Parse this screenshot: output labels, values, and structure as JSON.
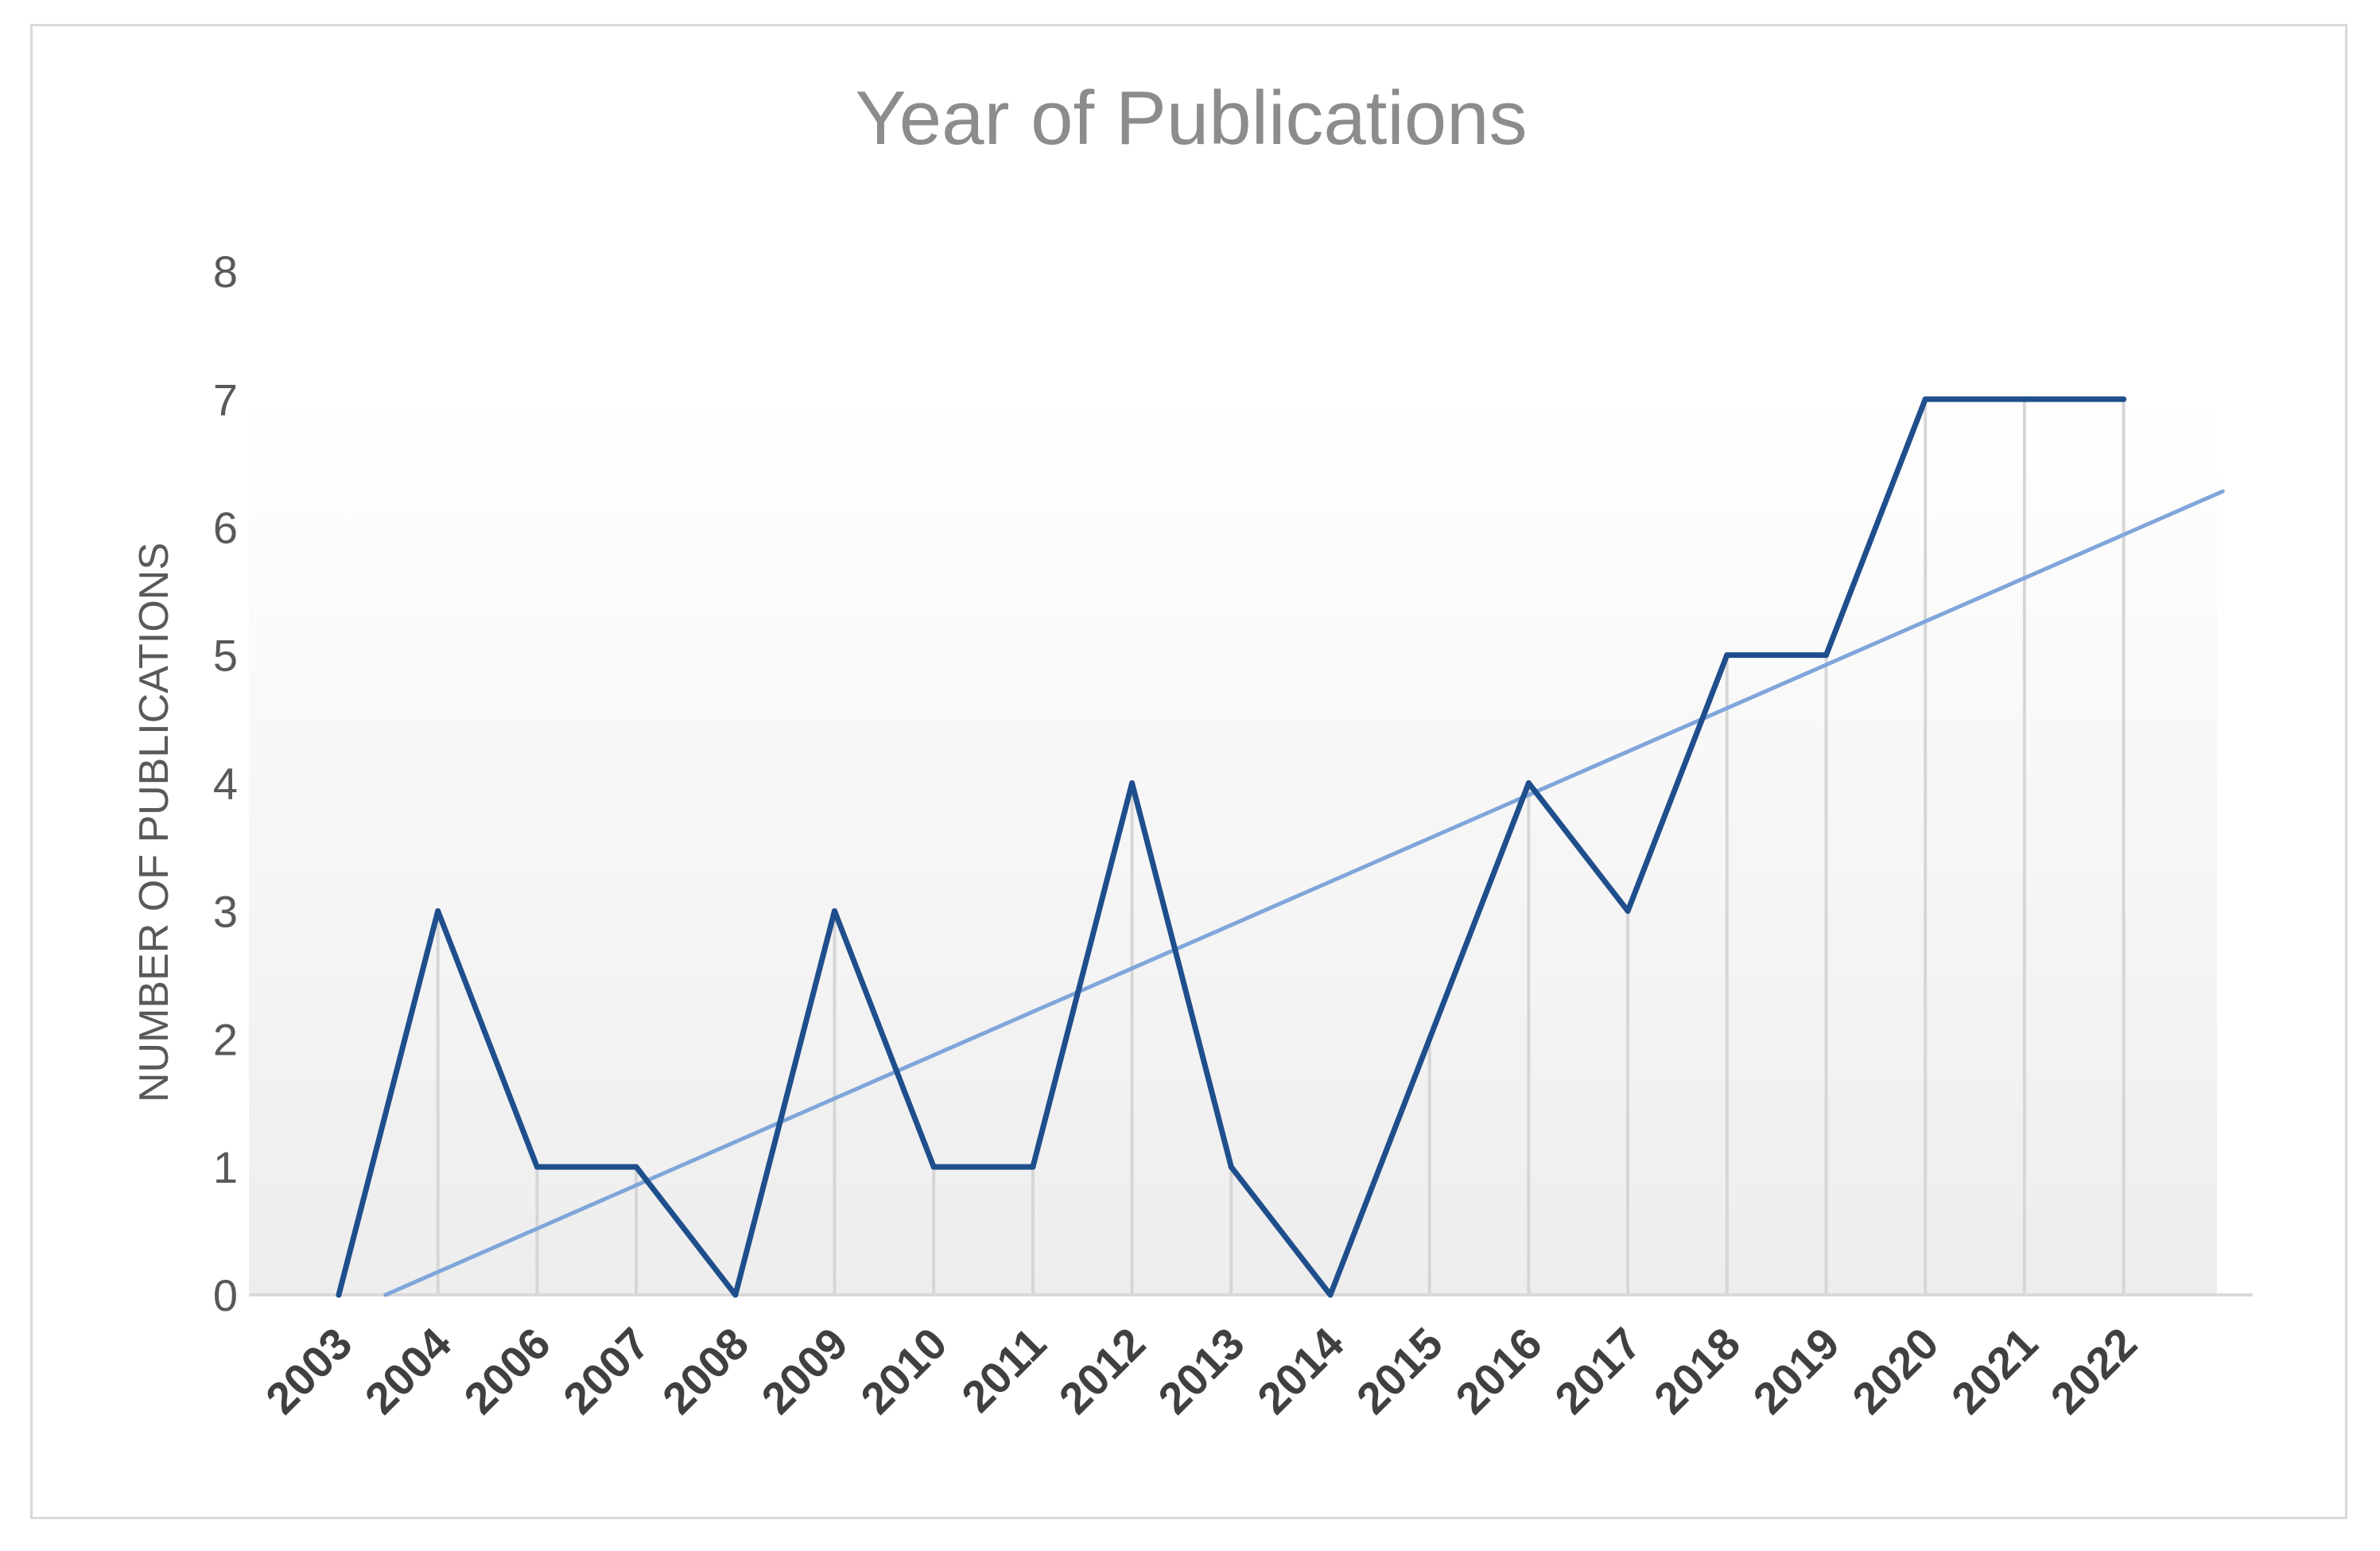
{
  "chart_data": {
    "type": "line",
    "title": "Year of Publications",
    "xlabel": "",
    "ylabel": "NUMBER OF PUBLICATIONS",
    "categories": [
      "2003",
      "2004",
      "2006",
      "2007",
      "2008",
      "2009",
      "2010",
      "2011",
      "2012",
      "2013",
      "2014",
      "2015",
      "2016",
      "2017",
      "2018",
      "2019",
      "2020",
      "2021",
      "2022"
    ],
    "series": [
      {
        "values": [
          0,
          3,
          1,
          1,
          0,
          3,
          1,
          1,
          4,
          1,
          0,
          2,
          4,
          3,
          5,
          5,
          7,
          7,
          7
        ],
        "color": "#1f4e8c"
      }
    ],
    "trendline": {
      "type": "linear",
      "start_value": -0.16,
      "end_value": 6.28,
      "start_category_index": 0,
      "end_category_index": 19,
      "color": "#7fa6da"
    },
    "ylim": [
      0,
      8
    ],
    "yticks": [
      "0",
      "1",
      "2",
      "3",
      "4",
      "5",
      "6",
      "7",
      "8"
    ],
    "grid": "vertical drop lines at each category",
    "legend": "none"
  }
}
